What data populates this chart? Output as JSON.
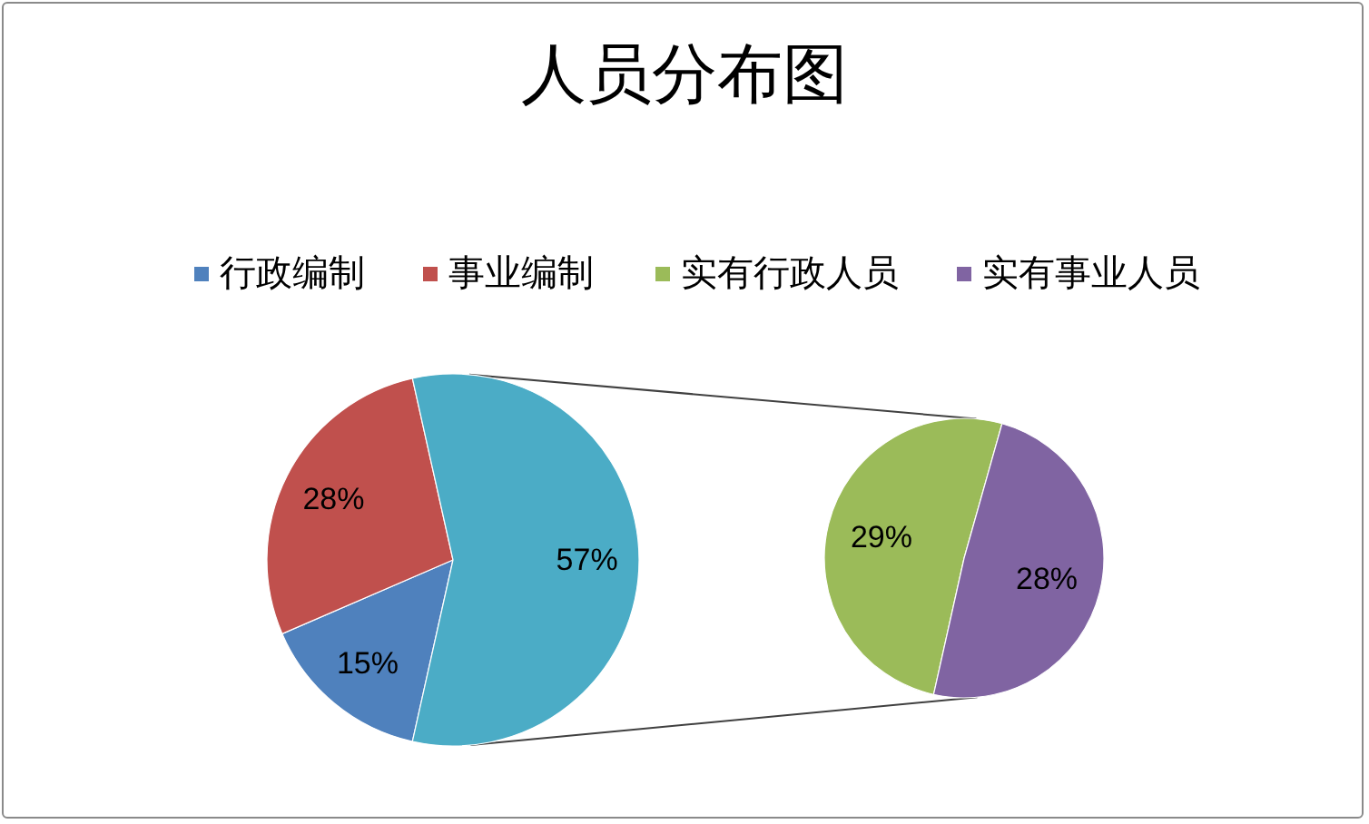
{
  "chart_data": [
    {
      "type": "pie",
      "title": "人员分布图",
      "categories": [
        "行政编制",
        "事业编制",
        null
      ],
      "values": [
        15,
        28,
        57
      ],
      "colors": [
        "#4f81bd",
        "#c0504d",
        "#4bacc6"
      ],
      "value_labels": [
        "15%",
        "28%",
        "57%"
      ],
      "legend": "top"
    },
    {
      "type": "pie",
      "categories": [
        "实有行政人员",
        "实有事业人员"
      ],
      "values": [
        29,
        28
      ],
      "colors": [
        "#9bbb59",
        "#8064a2"
      ],
      "value_labels": [
        "29%",
        "28%"
      ],
      "legend": "top"
    }
  ]
}
